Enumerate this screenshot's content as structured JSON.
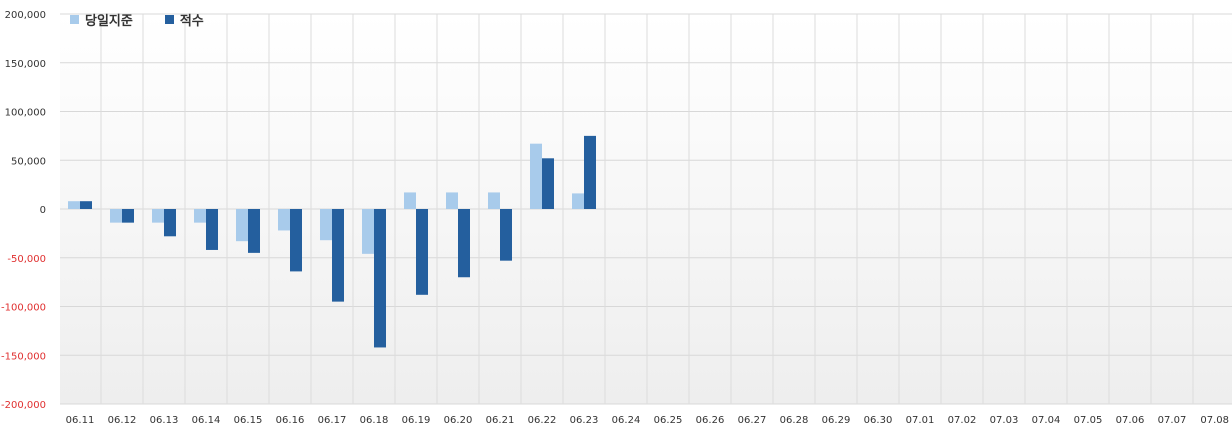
{
  "chart_data": {
    "type": "bar",
    "categories": [
      "06.11",
      "06.12",
      "06.13",
      "06.14",
      "06.15",
      "06.16",
      "06.17",
      "06.18",
      "06.19",
      "06.20",
      "06.21",
      "06.22",
      "06.23",
      "06.24",
      "06.25",
      "06.26",
      "06.27",
      "06.28",
      "06.29",
      "06.30",
      "07.01",
      "07.02",
      "07.03",
      "07.04",
      "07.05",
      "07.06",
      "07.07",
      "07.08"
    ],
    "series": [
      {
        "name": "당일지준",
        "color": "#a8cbeb",
        "values": [
          8000,
          -14000,
          -14000,
          -14000,
          -33000,
          -22000,
          -32000,
          -46000,
          17000,
          17000,
          17000,
          67000,
          16000,
          null,
          null,
          null,
          null,
          null,
          null,
          null,
          null,
          null,
          null,
          null,
          null,
          null,
          null,
          null
        ]
      },
      {
        "name": "적수",
        "color": "#245f9e",
        "values": [
          8000,
          -14000,
          -28000,
          -42000,
          -45000,
          -64000,
          -95000,
          -142000,
          -88000,
          -70000,
          -53000,
          52000,
          75000,
          null,
          null,
          null,
          null,
          null,
          null,
          null,
          null,
          null,
          null,
          null,
          null,
          null,
          null,
          null
        ]
      }
    ],
    "ylim": [
      -200000,
      200000
    ],
    "yticks": [
      {
        "value": 200000,
        "label": "200,000"
      },
      {
        "value": 150000,
        "label": "150,000"
      },
      {
        "value": 100000,
        "label": "100,000"
      },
      {
        "value": 50000,
        "label": "50,000"
      },
      {
        "value": 0,
        "label": "0"
      },
      {
        "value": -50000,
        "label": "-50,000"
      },
      {
        "value": -100000,
        "label": "-100,000"
      },
      {
        "value": -150000,
        "label": "-150,000"
      },
      {
        "value": -200000,
        "label": "-200,000"
      }
    ],
    "negative_tick_color": "#e03030",
    "grid": true,
    "legend_position": "top-left"
  }
}
